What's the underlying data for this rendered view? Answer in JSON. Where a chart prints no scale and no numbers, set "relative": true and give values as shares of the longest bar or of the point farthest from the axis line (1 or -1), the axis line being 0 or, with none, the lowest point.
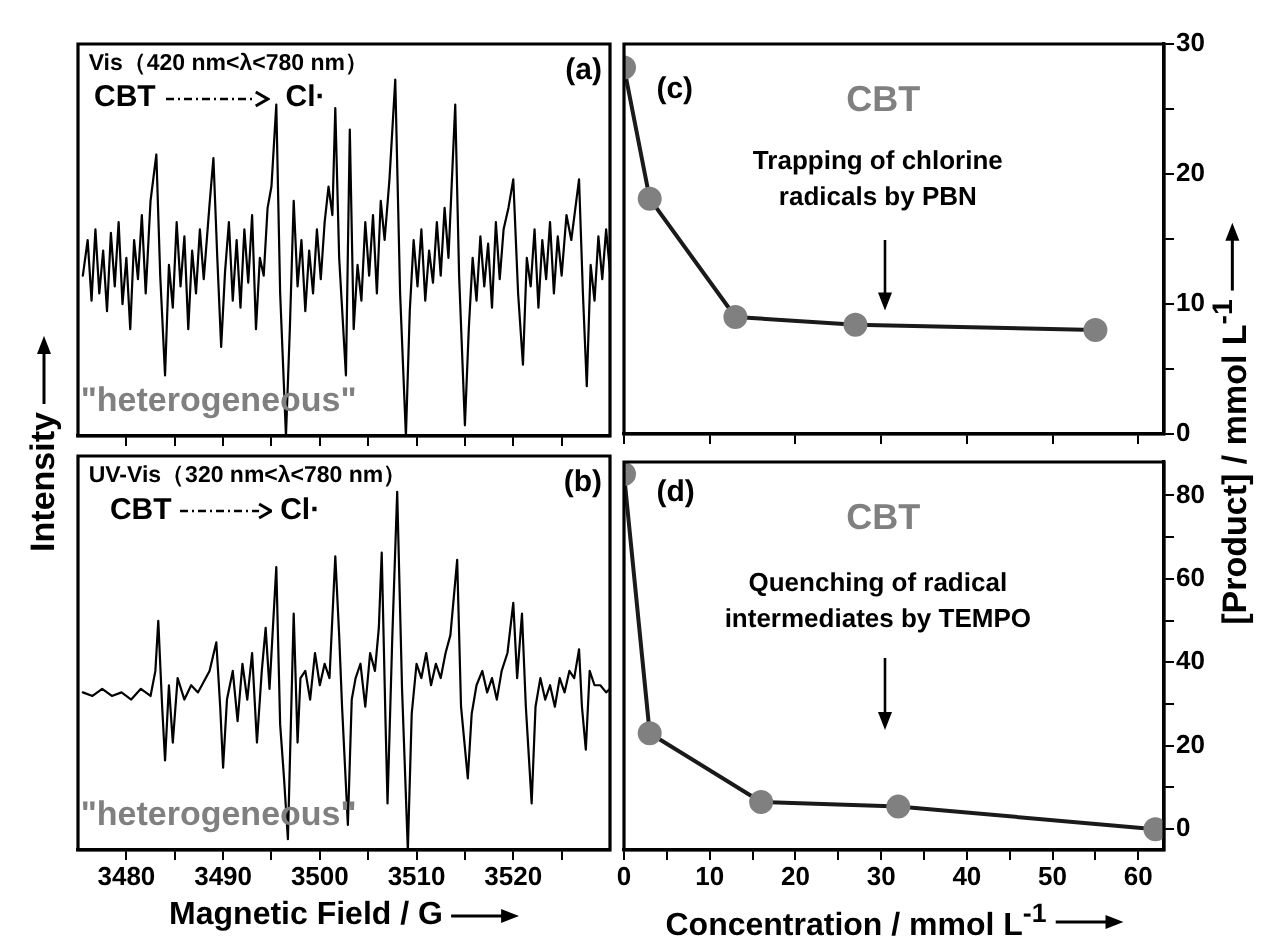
{
  "chart_data": [
    {
      "type": "line",
      "relative": true,
      "marker": "none",
      "tick_labels": false,
      "ylabel": "Intensity",
      "xlim": [
        3475,
        3530
      ],
      "xticks": [
        {
          "value": 3480,
          "label": null
        },
        {
          "value": 3485,
          "label": null
        },
        {
          "value": 3490,
          "label": null
        },
        {
          "value": 3495,
          "label": null
        },
        {
          "value": 3500,
          "label": null
        },
        {
          "value": 3505,
          "label": null
        },
        {
          "value": 3510,
          "label": null
        },
        {
          "value": 3515,
          "label": null
        },
        {
          "value": 3520,
          "label": null
        },
        {
          "value": 3525,
          "label": null
        }
      ],
      "annotations": [
        "(a)",
        "Vis（420 nm<λ<780 nm）",
        "CBT",
        "Cl·",
        "\"heterogeneous\""
      ],
      "series": [
        {
          "color": "#000000",
          "x": [
            3475.5,
            3476,
            3476.4,
            3476.8,
            3477.2,
            3477.6,
            3478,
            3478.4,
            3478.8,
            3479.2,
            3479.6,
            3480,
            3480.4,
            3480.8,
            3481.2,
            3481.6,
            3482,
            3482.5,
            3483.1,
            3483.5,
            3484,
            3484.4,
            3484.8,
            3485.2,
            3485.6,
            3486,
            3486.4,
            3486.8,
            3487.2,
            3487.6,
            3488,
            3488.6,
            3489,
            3489.4,
            3489.8,
            3490.2,
            3490.6,
            3491,
            3491.4,
            3491.8,
            3492.2,
            3492.6,
            3493,
            3493.4,
            3493.8,
            3494.2,
            3494.6,
            3495,
            3495.5,
            3495.9,
            3496.5,
            3496.9,
            3497.3,
            3497.7,
            3498.1,
            3498.5,
            3498.9,
            3499.3,
            3499.7,
            3500.1,
            3500.5,
            3500.9,
            3501.3,
            3501.6,
            3502,
            3502.7,
            3503.1,
            3503.5,
            3503.9,
            3504.3,
            3504.7,
            3505.1,
            3505.5,
            3505.9,
            3506.3,
            3506.7,
            3507.2,
            3507.8,
            3508.3,
            3508.9,
            3509.3,
            3509.7,
            3510.1,
            3510.5,
            3510.9,
            3511.3,
            3511.7,
            3512.1,
            3512.5,
            3512.9,
            3513.3,
            3514,
            3514.4,
            3515,
            3515.4,
            3515.8,
            3516.2,
            3516.6,
            3517,
            3517.4,
            3517.8,
            3518.2,
            3518.6,
            3519,
            3519.5,
            3520,
            3520.5,
            3521,
            3521.4,
            3521.8,
            3522.2,
            3522.6,
            3523,
            3523.4,
            3523.8,
            3524.2,
            3524.6,
            3525,
            3525.5,
            3526,
            3526.8,
            3527.2,
            3527.6,
            3528,
            3528.4,
            3528.8,
            3529.2,
            3529.6,
            3530
          ],
          "values": [
            0.45,
            0.55,
            0.38,
            0.58,
            0.4,
            0.52,
            0.35,
            0.57,
            0.42,
            0.6,
            0.37,
            0.5,
            0.3,
            0.55,
            0.44,
            0.62,
            0.4,
            0.66,
            0.79,
            0.45,
            0.17,
            0.48,
            0.36,
            0.6,
            0.42,
            0.56,
            0.3,
            0.52,
            0.4,
            0.58,
            0.44,
            0.65,
            0.78,
            0.5,
            0.25,
            0.46,
            0.6,
            0.38,
            0.55,
            0.36,
            0.58,
            0.43,
            0.62,
            0.3,
            0.5,
            0.45,
            0.64,
            0.7,
            0.93,
            0.4,
            0,
            0.3,
            0.66,
            0.42,
            0.55,
            0.35,
            0.52,
            0.4,
            0.58,
            0.44,
            0.6,
            0.7,
            0.62,
            0.92,
            0.5,
            0.17,
            0.86,
            0.3,
            0.48,
            0.38,
            0.6,
            0.45,
            0.62,
            0.4,
            0.66,
            0.55,
            0.72,
            1,
            0.4,
            0,
            0.35,
            0.55,
            0.42,
            0.58,
            0.38,
            0.52,
            0.43,
            0.6,
            0.45,
            0.64,
            0.5,
            0.93,
            0.45,
            0.03,
            0.3,
            0.5,
            0.38,
            0.56,
            0.42,
            0.54,
            0.36,
            0.6,
            0.44,
            0.58,
            0.64,
            0.72,
            0.4,
            0.2,
            0.5,
            0.42,
            0.58,
            0.36,
            0.55,
            0.44,
            0.6,
            0.4,
            0.56,
            0.45,
            0.62,
            0.55,
            0.72,
            0.4,
            0.14,
            0.48,
            0.38,
            0.56,
            0.44,
            0.58,
            0.46
          ]
        }
      ]
    },
    {
      "type": "line",
      "relative": true,
      "marker": "none",
      "tick_labels": "x",
      "xlabel": "Magnetic Field / G",
      "xlim": [
        3475,
        3530
      ],
      "xticks": [
        3480,
        {
          "value": 3485,
          "label": null
        },
        3490,
        {
          "value": 3495,
          "label": null
        },
        3500,
        {
          "value": 3505,
          "label": null
        },
        3510,
        {
          "value": 3515,
          "label": null
        },
        3520,
        {
          "value": 3525,
          "label": null
        }
      ],
      "annotations": [
        "(b)",
        "UV-Vis（320 nm<λ<780 nm）",
        "CBT",
        "Cl·",
        "\"heterogeneous\""
      ],
      "series": [
        {
          "color": "#000000",
          "x": [
            3475.5,
            3476.5,
            3477.5,
            3478.5,
            3479.5,
            3480.5,
            3481.5,
            3482.5,
            3483,
            3483.3,
            3483.7,
            3484,
            3484.4,
            3484.8,
            3485.3,
            3486,
            3486.7,
            3487.4,
            3488,
            3488.6,
            3489.3,
            3489.7,
            3490,
            3490.4,
            3491,
            3491.5,
            3492,
            3492.5,
            3493,
            3493.5,
            3494,
            3494.4,
            3494.8,
            3495.5,
            3495.9,
            3496.3,
            3496.7,
            3497.3,
            3497.7,
            3498,
            3498.5,
            3499,
            3499.5,
            3500,
            3500.5,
            3501,
            3501.6,
            3502,
            3502.3,
            3502.9,
            3503.3,
            3503.7,
            3504.2,
            3504.7,
            3505.2,
            3505.7,
            3506.1,
            3506.4,
            3506.8,
            3507,
            3507.5,
            3508,
            3508.5,
            3509.1,
            3509.5,
            3510,
            3510.5,
            3511,
            3511.5,
            3512,
            3512.5,
            3513,
            3513.5,
            3514.2,
            3514.6,
            3515.3,
            3515.7,
            3516.2,
            3516.8,
            3517.3,
            3517.8,
            3518.3,
            3518.8,
            3519.4,
            3520,
            3520.4,
            3520.9,
            3521.3,
            3521.9,
            3522.3,
            3522.8,
            3523.3,
            3523.8,
            3524.3,
            3524.8,
            3525.3,
            3525.8,
            3526.3,
            3526.8,
            3527.1,
            3527.5,
            3527.9,
            3528.4,
            3529,
            3529.6,
            3530
          ],
          "values": [
            0.44,
            0.43,
            0.45,
            0.43,
            0.44,
            0.42,
            0.45,
            0.43,
            0.5,
            0.64,
            0.4,
            0.25,
            0.46,
            0.3,
            0.48,
            0.42,
            0.46,
            0.44,
            0.47,
            0.5,
            0.58,
            0.4,
            0.23,
            0.42,
            0.5,
            0.36,
            0.52,
            0.42,
            0.55,
            0.3,
            0.5,
            0.62,
            0.45,
            0.79,
            0.35,
            0.2,
            0.03,
            0.66,
            0.3,
            0.48,
            0.5,
            0.42,
            0.55,
            0.46,
            0.52,
            0.48,
            0.82,
            0.6,
            0.4,
            0.07,
            0.42,
            0.48,
            0.52,
            0.4,
            0.55,
            0.5,
            0.62,
            0.83,
            0.35,
            0.13,
            0.6,
            1,
            0.45,
            0,
            0.38,
            0.52,
            0.48,
            0.55,
            0.46,
            0.52,
            0.48,
            0.55,
            0.6,
            0.81,
            0.4,
            0.2,
            0.38,
            0.46,
            0.5,
            0.44,
            0.48,
            0.42,
            0.5,
            0.55,
            0.69,
            0.48,
            0.66,
            0.4,
            0.13,
            0.4,
            0.48,
            0.42,
            0.46,
            0.4,
            0.48,
            0.44,
            0.5,
            0.48,
            0.56,
            0.4,
            0.28,
            0.5,
            0.46,
            0.46,
            0.44,
            0.45
          ]
        }
      ]
    },
    {
      "type": "line",
      "marker": "circle",
      "tick_labels": "y",
      "ylabel": "[Product] / mmol L$^{-1}$",
      "xlim": [
        0,
        63
      ],
      "xticks": [
        {
          "value": 0,
          "label": null
        },
        {
          "value": 10,
          "label": null
        },
        {
          "value": 20,
          "label": null
        },
        {
          "value": 30,
          "label": null
        },
        {
          "value": 40,
          "label": null
        },
        {
          "value": 50,
          "label": null
        },
        {
          "value": 60,
          "label": null
        }
      ],
      "ylim": [
        0,
        30
      ],
      "yticks": [
        0,
        {
          "value": 5,
          "label": null
        },
        10,
        {
          "value": 15,
          "label": null
        },
        20,
        {
          "value": 25,
          "label": null
        },
        30
      ],
      "annotations": [
        "(c)",
        "CBT",
        "Trapping of chlorine radicals by PBN"
      ],
      "series": [
        {
          "color": "#808080",
          "x": [
            0,
            3,
            13,
            27,
            55
          ],
          "values": [
            28.2,
            18.1,
            9.0,
            8.4,
            8.0
          ]
        }
      ]
    },
    {
      "type": "line",
      "marker": "circle",
      "xlabel": "Concentration / mmol L$^{-1}$",
      "xlim": [
        0,
        63
      ],
      "xticks": [
        0,
        {
          "value": 5,
          "label": null
        },
        10,
        {
          "value": 15,
          "label": null
        },
        20,
        {
          "value": 25,
          "label": null
        },
        30,
        {
          "value": 35,
          "label": null
        },
        40,
        {
          "value": 45,
          "label": null
        },
        50,
        {
          "value": 55,
          "label": null
        },
        60
      ],
      "ylim": [
        -5,
        88
      ],
      "yticks": [
        0,
        {
          "value": 10,
          "label": null
        },
        20,
        {
          "value": 30,
          "label": null
        },
        40,
        {
          "value": 50,
          "label": null
        },
        60,
        {
          "value": 70,
          "label": null
        },
        80
      ],
      "annotations": [
        "(d)",
        "CBT",
        "Quenching of radical intermediates by TEMPO"
      ],
      "series": [
        {
          "color": "#808080",
          "x": [
            0,
            3,
            16,
            32,
            62
          ],
          "values": [
            85.1,
            23,
            6.5,
            5.4,
            0
          ]
        }
      ]
    }
  ]
}
